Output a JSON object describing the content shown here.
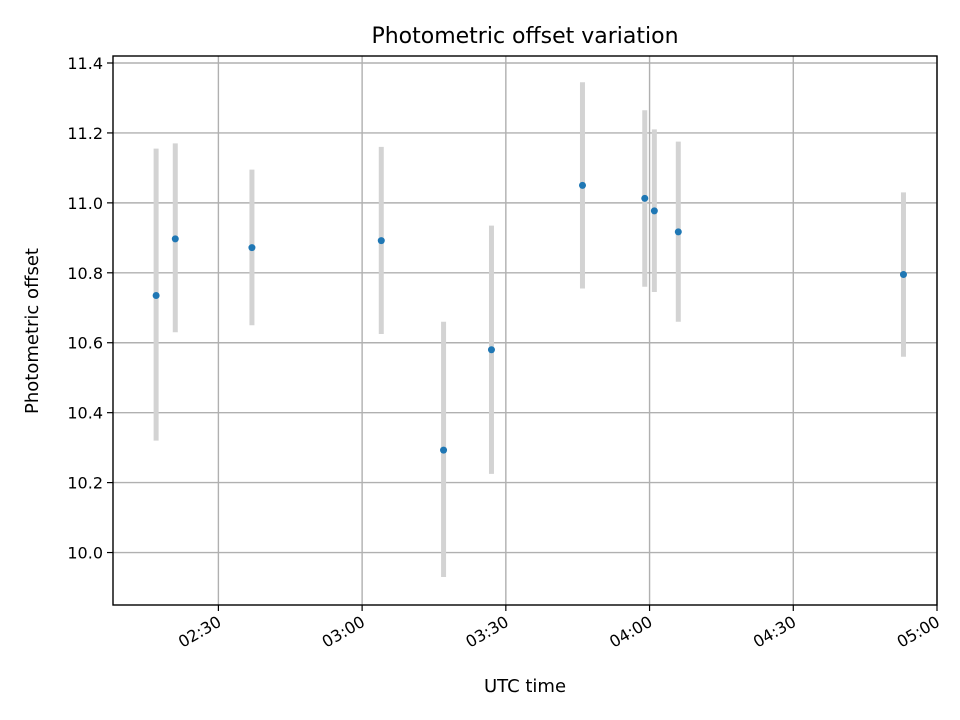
{
  "chart_data": {
    "type": "scatter",
    "title": "Photometric offset variation",
    "xlabel": "UTC time",
    "ylabel": "Photometric offset",
    "xlim": [
      "02:08",
      "05:00"
    ],
    "ylim": [
      9.85,
      11.42
    ],
    "x_ticks": [
      "02:30",
      "03:00",
      "03:30",
      "04:00",
      "04:30",
      "05:00"
    ],
    "y_ticks": [
      10.0,
      10.2,
      10.4,
      10.6,
      10.8,
      11.0,
      11.2,
      11.4
    ],
    "grid": true,
    "point_color": "#1f77b4",
    "errorbar_color": "#d3d3d3",
    "points": [
      {
        "x": "02:17",
        "y": 10.735,
        "ylow": 10.32,
        "yhigh": 11.155
      },
      {
        "x": "02:21",
        "y": 10.897,
        "ylow": 10.63,
        "yhigh": 11.17
      },
      {
        "x": "02:37",
        "y": 10.872,
        "ylow": 10.65,
        "yhigh": 11.095
      },
      {
        "x": "03:04",
        "y": 10.892,
        "ylow": 10.625,
        "yhigh": 11.16
      },
      {
        "x": "03:17",
        "y": 10.293,
        "ylow": 9.93,
        "yhigh": 10.66
      },
      {
        "x": "03:27",
        "y": 10.58,
        "ylow": 10.225,
        "yhigh": 10.935
      },
      {
        "x": "03:46",
        "y": 11.05,
        "ylow": 10.755,
        "yhigh": 11.345
      },
      {
        "x": "03:59",
        "y": 11.013,
        "ylow": 10.76,
        "yhigh": 11.265
      },
      {
        "x": "04:01",
        "y": 10.977,
        "ylow": 10.745,
        "yhigh": 11.21
      },
      {
        "x": "04:06",
        "y": 10.917,
        "ylow": 10.66,
        "yhigh": 11.175
      },
      {
        "x": "04:53",
        "y": 10.795,
        "ylow": 10.56,
        "yhigh": 11.03
      }
    ]
  }
}
